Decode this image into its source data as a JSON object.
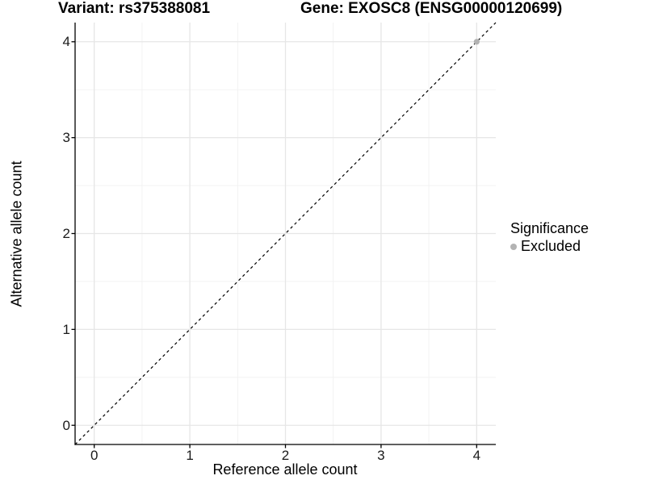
{
  "titles": {
    "variant": "Variant: rs375388081",
    "gene": "Gene: EXOSC8 (ENSG00000120699)"
  },
  "axes": {
    "x_label": "Reference allele count",
    "y_label": "Alternative allele count"
  },
  "legend": {
    "title": "Significance",
    "items": [
      {
        "label": "Excluded",
        "color": "#b3b3b3"
      }
    ]
  },
  "chart_data": {
    "type": "scatter",
    "title": "Variant: rs375388081 | Gene: EXOSC8 (ENSG00000120699)",
    "xlabel": "Reference allele count",
    "ylabel": "Alternative allele count",
    "xlim": [
      -0.2,
      4.2
    ],
    "ylim": [
      -0.2,
      4.2
    ],
    "x_ticks": [
      0,
      1,
      2,
      3,
      4
    ],
    "y_ticks": [
      0,
      1,
      2,
      3,
      4
    ],
    "grid": "major and minor gridlines, light gray on white panel",
    "legend_position": "right",
    "series": [
      {
        "name": "Excluded",
        "color": "#b3b3b3",
        "points": [
          {
            "x": 4,
            "y": 4
          }
        ]
      }
    ],
    "reference_line": {
      "kind": "identity y=x",
      "style": "dashed",
      "color": "#000000"
    }
  },
  "colors": {
    "background": "#ffffff",
    "axis_line": "#000000",
    "grid_major": "#e6e6e6",
    "grid_minor": "#f1f1f1",
    "tick_text": "#1a1a1a",
    "excluded_point": "#b3b3b3"
  }
}
